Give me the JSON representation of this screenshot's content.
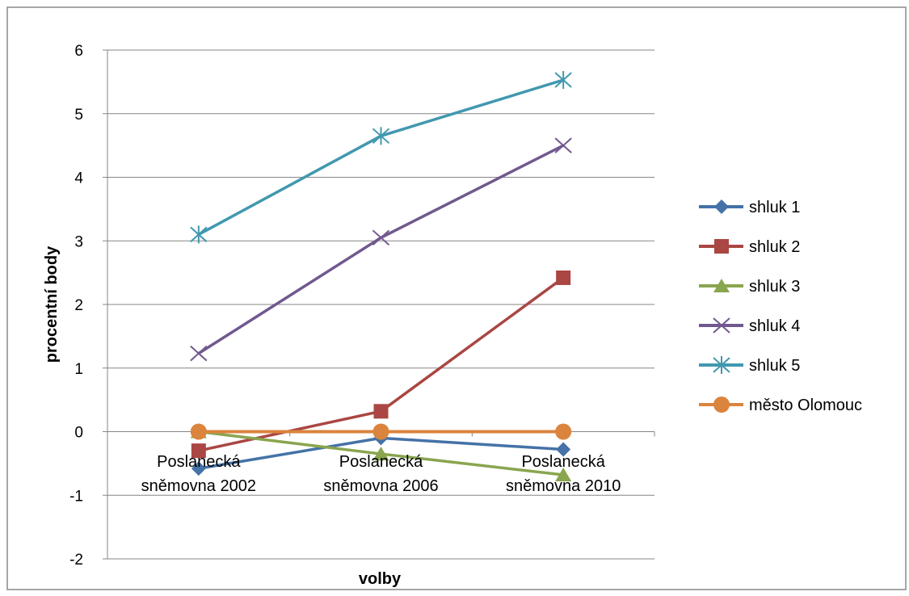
{
  "chart_data": {
    "type": "line",
    "title": "",
    "xlabel": "volby",
    "ylabel": "procentní body",
    "categories": [
      [
        "Poslanecká",
        "sněmovna 2002"
      ],
      [
        "Poslanecká",
        "sněmovna 2006"
      ],
      [
        "Poslanecká",
        "sněmovna 2010"
      ]
    ],
    "ylim": [
      -2,
      6
    ],
    "yticks": [
      -2,
      -1,
      0,
      1,
      2,
      3,
      4,
      5,
      6
    ],
    "grid": true,
    "legend_position": "right",
    "series": [
      {
        "name": "shluk 1",
        "color": "#4572a7",
        "marker": "diamond",
        "values": [
          -0.58,
          -0.1,
          -0.28
        ]
      },
      {
        "name": "shluk 2",
        "color": "#aa4643",
        "marker": "square",
        "values": [
          -0.3,
          0.32,
          2.42
        ]
      },
      {
        "name": "shluk 3",
        "color": "#89a54e",
        "marker": "triangle",
        "values": [
          0.0,
          -0.35,
          -0.68
        ]
      },
      {
        "name": "shluk 4",
        "color": "#71588f",
        "marker": "x",
        "values": [
          1.23,
          3.05,
          4.5
        ]
      },
      {
        "name": "shluk 5",
        "color": "#4198af",
        "marker": "asterisk",
        "values": [
          3.1,
          4.65,
          5.53
        ]
      },
      {
        "name": "město Olomouc",
        "color": "#db843d",
        "marker": "circle",
        "values": [
          0,
          0,
          0
        ]
      }
    ]
  }
}
